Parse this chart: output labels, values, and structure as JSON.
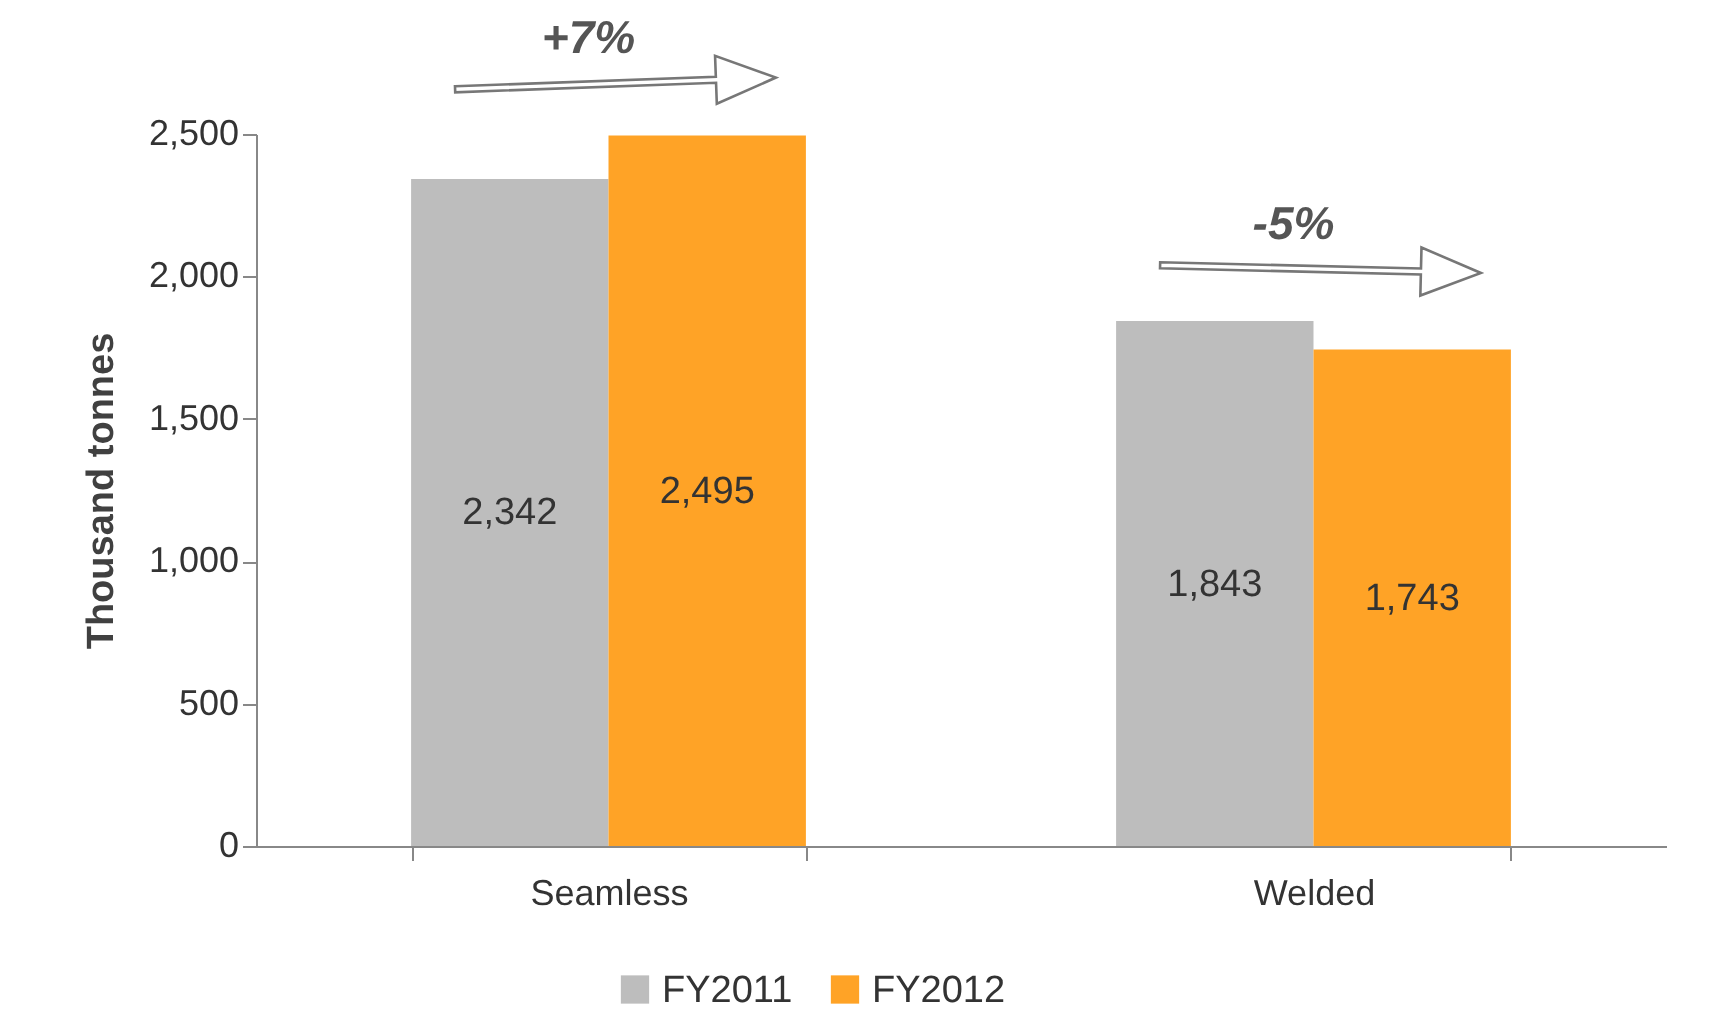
{
  "chart_data": {
    "type": "bar",
    "ylabel": "Thousand tonnes",
    "categories": [
      "Seamless",
      "Welded"
    ],
    "series": [
      {
        "name": "FY2011",
        "color": "#bdbdbd",
        "values": [
          2342,
          1843
        ],
        "value_labels": [
          "2,342",
          "1,843"
        ]
      },
      {
        "name": "FY2012",
        "color": "#ffa326",
        "values": [
          2495,
          1743
        ],
        "value_labels": [
          "2,495",
          "1,743"
        ]
      }
    ],
    "ylim": [
      0,
      2500
    ],
    "yticks": [
      0,
      500,
      {
        "value": 1000,
        "label": "1,000"
      },
      {
        "value": 1500,
        "label": "1,500"
      },
      {
        "value": 2000,
        "label": "2,000"
      },
      {
        "value": 2500,
        "label": "2,500"
      }
    ],
    "grid": false,
    "legend": "bottom",
    "annotations": [
      "+7%",
      "-5%"
    ]
  }
}
